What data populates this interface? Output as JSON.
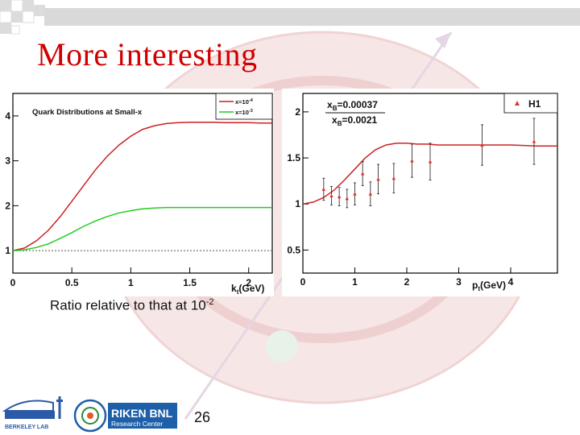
{
  "slide": {
    "title": "More interesting",
    "caption_prefix": "Ratio relative to that at 10",
    "caption_exp": "-2",
    "page_number": "26",
    "logos": {
      "berkeley": "BERKELEY LAB",
      "riken_main": "RIKEN BNL",
      "riken_sub": "Research Center"
    }
  },
  "colors": {
    "accent_red": "#d00000",
    "series_red": "#cc2222",
    "series_green": "#22cc22",
    "point_red": "#e03030"
  },
  "chart_data": [
    {
      "type": "line",
      "title": "Quark Distributions at Small-x",
      "xlabel_main": "k",
      "xlabel_sub": "t",
      "xlabel_unit": "(GeV)",
      "xlim": [
        0,
        2.2
      ],
      "ylim": [
        0.5,
        4.5
      ],
      "x_ticks": [
        0,
        0.5,
        1,
        1.5,
        2
      ],
      "x_tick_labels": [
        "0",
        "0.5",
        "1",
        "1.5",
        "2"
      ],
      "y_ticks": [
        1,
        2,
        3,
        4
      ],
      "y_tick_labels": [
        "1",
        "2",
        "3",
        "4"
      ],
      "reference_line": 1,
      "legend_position": "top-right",
      "series": [
        {
          "name": "x=10",
          "name_exp": "-4",
          "color": "#cc2222",
          "x": [
            0,
            0.1,
            0.2,
            0.3,
            0.4,
            0.5,
            0.6,
            0.7,
            0.8,
            0.9,
            1.0,
            1.1,
            1.2,
            1.3,
            1.4,
            1.5,
            1.6,
            1.7,
            1.8,
            1.9,
            2.0,
            2.1,
            2.2
          ],
          "y": [
            1.0,
            1.06,
            1.22,
            1.45,
            1.75,
            2.1,
            2.45,
            2.8,
            3.1,
            3.35,
            3.55,
            3.7,
            3.78,
            3.83,
            3.85,
            3.86,
            3.86,
            3.86,
            3.85,
            3.85,
            3.85,
            3.84,
            3.84
          ]
        },
        {
          "name": "x=10",
          "name_exp": "-3",
          "color": "#22cc22",
          "x": [
            0,
            0.1,
            0.2,
            0.3,
            0.4,
            0.5,
            0.6,
            0.7,
            0.8,
            0.9,
            1.0,
            1.1,
            1.2,
            1.3,
            1.4,
            1.5,
            1.6,
            1.7,
            1.8,
            1.9,
            2.0,
            2.1,
            2.2
          ],
          "y": [
            1.0,
            1.02,
            1.07,
            1.15,
            1.27,
            1.4,
            1.54,
            1.66,
            1.76,
            1.84,
            1.89,
            1.93,
            1.95,
            1.96,
            1.96,
            1.96,
            1.96,
            1.96,
            1.96,
            1.96,
            1.96,
            1.96,
            1.96
          ]
        }
      ]
    },
    {
      "type": "scatter",
      "xlabel_main": "p",
      "xlabel_sub": "t",
      "xlabel_unit": "(GeV)",
      "xlim": [
        0,
        4.9
      ],
      "ylim": [
        0.25,
        2.2
      ],
      "x_ticks": [
        0,
        1,
        2,
        3,
        4
      ],
      "x_tick_labels": [
        "0",
        "1",
        "2",
        "3",
        "4"
      ],
      "y_ticks": [
        0.5,
        1,
        1.5,
        2
      ],
      "y_tick_labels": [
        "0.5",
        "1",
        "1.5",
        "2"
      ],
      "annotation_numerator": "0.00037",
      "annotation_denominator": "0.0021",
      "annotation_var": "x",
      "annotation_sub": "B",
      "legend_position": "top-right",
      "theory_curve": {
        "color": "#cc2222",
        "x": [
          0,
          0.2,
          0.4,
          0.6,
          0.8,
          1.0,
          1.2,
          1.4,
          1.6,
          1.8,
          2.0,
          2.2,
          2.4,
          2.6,
          2.8,
          3.0,
          3.5,
          4.0,
          4.5,
          4.9
        ],
        "y": [
          1.0,
          1.02,
          1.07,
          1.15,
          1.26,
          1.38,
          1.5,
          1.59,
          1.64,
          1.66,
          1.66,
          1.65,
          1.65,
          1.64,
          1.64,
          1.64,
          1.64,
          1.64,
          1.63,
          1.63
        ]
      },
      "series": [
        {
          "name": "H1",
          "color": "#e03030",
          "x": [
            0.4,
            0.55,
            0.7,
            0.85,
            1.0,
            1.15,
            1.3,
            1.45,
            1.75,
            2.1,
            2.45,
            3.45,
            4.45
          ],
          "y": [
            1.16,
            1.09,
            1.08,
            1.06,
            1.11,
            1.33,
            1.11,
            1.27,
            1.28,
            1.47,
            1.46,
            1.64,
            1.68
          ],
          "err": [
            0.12,
            0.1,
            0.1,
            0.1,
            0.12,
            0.13,
            0.13,
            0.16,
            0.16,
            0.18,
            0.2,
            0.22,
            0.25
          ]
        }
      ]
    }
  ]
}
